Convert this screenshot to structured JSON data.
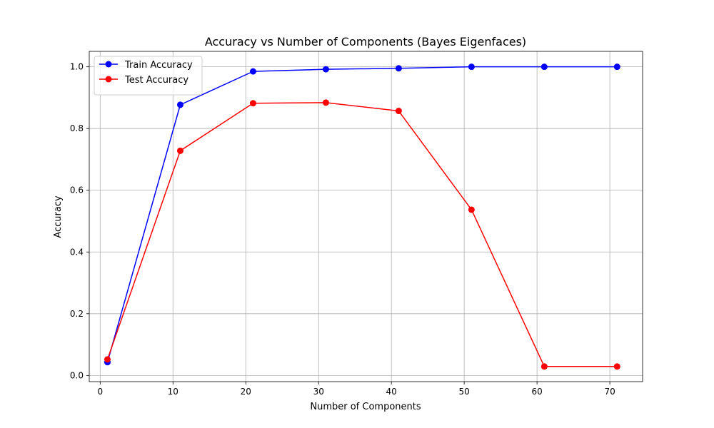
{
  "chart_data": {
    "type": "line",
    "title": "Accuracy vs Number of Components (Bayes Eigenfaces)",
    "xlabel": "Number of Components",
    "ylabel": "Accuracy",
    "xlim": [
      -1.5,
      74.5
    ],
    "ylim": [
      -0.02,
      1.05
    ],
    "xticks": [
      0,
      10,
      20,
      30,
      40,
      50,
      60,
      70
    ],
    "yticks": [
      0.0,
      0.2,
      0.4,
      0.6,
      0.8,
      1.0
    ],
    "xtick_labels": [
      "0",
      "10",
      "20",
      "30",
      "40",
      "50",
      "60",
      "70"
    ],
    "ytick_labels": [
      "0.0",
      "0.2",
      "0.4",
      "0.6",
      "0.8",
      "1.0"
    ],
    "grid": true,
    "legend_position": "top-left",
    "x": [
      1,
      11,
      21,
      31,
      41,
      51,
      61,
      71
    ],
    "series": [
      {
        "name": "Train Accuracy",
        "color": "#0000ff",
        "values": [
          0.043,
          0.877,
          0.985,
          0.992,
          0.995,
          1.0,
          1.0,
          1.0
        ]
      },
      {
        "name": "Test Accuracy",
        "color": "#ff0000",
        "values": [
          0.052,
          0.728,
          0.882,
          0.884,
          0.857,
          0.537,
          0.029,
          0.029
        ]
      }
    ]
  }
}
